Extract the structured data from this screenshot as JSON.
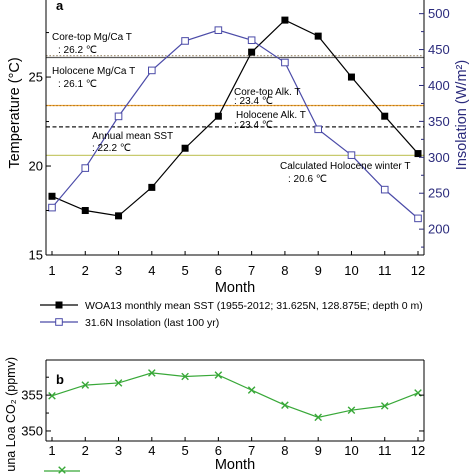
{
  "chart_data": [
    {
      "panel_label": "a",
      "type": "line",
      "xlabel": "Month",
      "ylabel": "Temperature (°C)",
      "y2label": "Insolation (W/m²)",
      "x": [
        1,
        2,
        3,
        4,
        5,
        6,
        7,
        8,
        9,
        10,
        11,
        12
      ],
      "xticks": [
        1,
        2,
        3,
        4,
        5,
        6,
        7,
        8,
        9,
        10,
        11,
        12
      ],
      "xlim": [
        0.82,
        12.18
      ],
      "ylim": [
        15,
        29.33
      ],
      "yticks": [
        15,
        20,
        25
      ],
      "y2lim": [
        164,
        519
      ],
      "y2ticks": [
        200,
        250,
        300,
        350,
        400,
        450,
        500
      ],
      "right_axis_color": "#2b2b7c",
      "grid": false,
      "legend": "bottom",
      "series": [
        {
          "name": "WOA13 monthly mean SST (1955-2012; 31.625N, 128.875E; depth 0 m)",
          "axis": "left",
          "color": "#000000",
          "marker": "filled-square",
          "values": [
            18.3,
            17.5,
            17.2,
            18.8,
            21.0,
            22.8,
            26.4,
            28.2,
            27.3,
            25.0,
            22.8,
            20.7
          ]
        },
        {
          "name": "31.6N Insolation (last 100 yr)",
          "axis": "right",
          "color": "#4b4ba8",
          "marker": "open-square",
          "values": [
            230,
            285,
            357,
            421,
            462,
            477,
            463,
            432,
            339,
            303,
            255,
            215
          ]
        }
      ],
      "reference_lines": [
        {
          "label": "Core-top Mg/Ca T",
          "value_text": ": 26.2 ℃",
          "value": 26.2,
          "style": "dotted",
          "color": "#9d8b6c"
        },
        {
          "label": "Holocene Mg/Ca T",
          "value_text": ": 26.1 ℃",
          "value": 26.1,
          "style": "solid",
          "color": "#5c5c5c"
        },
        {
          "label": "Core-top Alk. T",
          "value_text": ": 23.4 ℃",
          "value": 23.4,
          "style": "solid",
          "color": "#f2a735"
        },
        {
          "label": "Holocene Alk. T",
          "value_text": ": 23.4 ℃",
          "value": 23.4,
          "style": "dotted",
          "color": "#b5781f"
        },
        {
          "label": "Annual mean SST",
          "value_text": ": 22.2 ℃",
          "value": 22.2,
          "style": "dashed",
          "color": "#1a1a1a"
        },
        {
          "label": "Calculated Holocene winter T",
          "value_text": ": 20.6 ℃",
          "value": 20.6,
          "style": "solid",
          "color": "#c8ca6e"
        }
      ]
    },
    {
      "panel_label": "b",
      "type": "line",
      "xlabel": "Month",
      "ylabel": "una Loa CO₂ (ppmv)",
      "x": [
        1,
        2,
        3,
        4,
        5,
        6,
        7,
        8,
        9,
        10,
        11,
        12
      ],
      "xticks": [
        1,
        2,
        3,
        4,
        5,
        6,
        7,
        8,
        9,
        10,
        11,
        12
      ],
      "xlim": [
        0.82,
        12.18
      ],
      "ylim": [
        348.6,
        359.9
      ],
      "yticks": [
        350,
        355
      ],
      "grid": false,
      "series": [
        {
          "axis": "left",
          "color": "#38a838",
          "marker": "x",
          "values": [
            354.9,
            356.4,
            356.7,
            358.1,
            357.6,
            357.8,
            355.7,
            353.6,
            351.9,
            352.9,
            353.5,
            355.3
          ]
        }
      ]
    }
  ]
}
